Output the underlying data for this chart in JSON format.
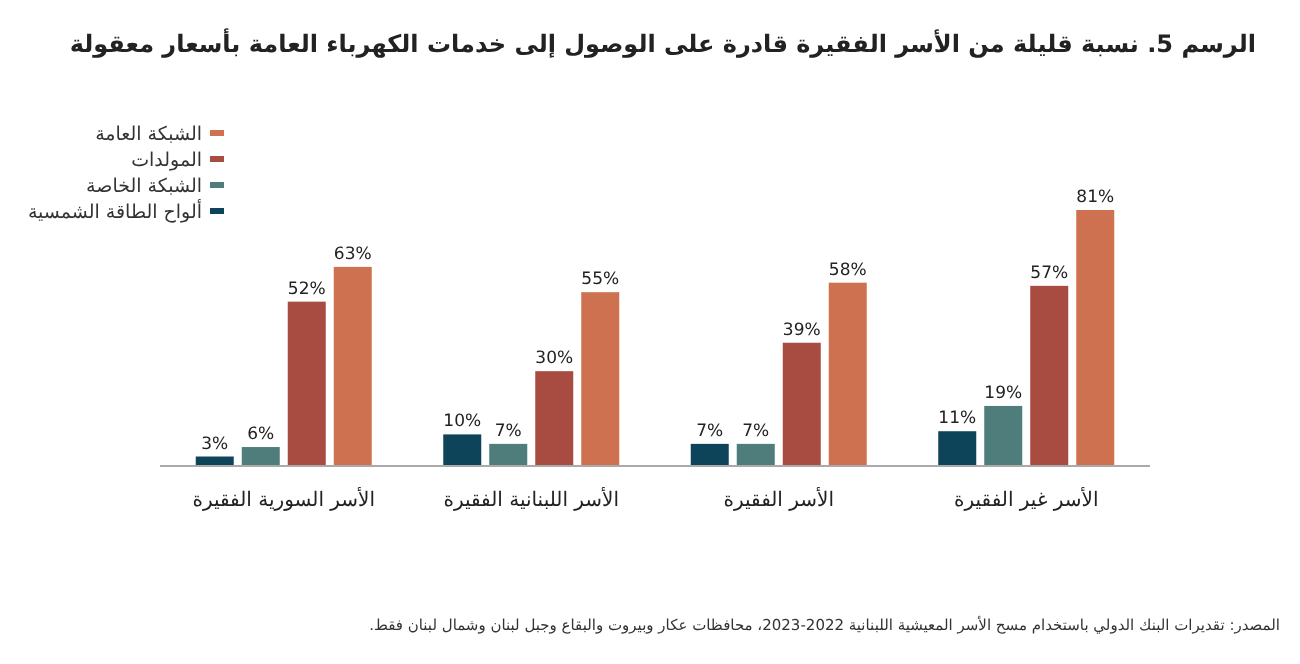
{
  "chart_data": {
    "type": "bar",
    "title": "الرسم 5. نسبة قليلة من الأسر الفقيرة قادرة على الوصول إلى خدمات الكهرباء العامة بأسعار معقولة",
    "categories": [
      "الأسر السورية الفقيرة",
      "الأسر اللبنانية الفقيرة",
      "الأسر الفقيرة",
      "الأسر غير الفقيرة"
    ],
    "series": [
      {
        "name": "ألواح الطاقة الشمسية",
        "color": "#0e4459",
        "values": [
          3,
          10,
          7,
          11
        ],
        "value_labels": [
          "3%",
          "10%",
          "7%",
          "11%"
        ]
      },
      {
        "name": "الشبكة الخاصة",
        "color": "#4f7d7c",
        "values": [
          6,
          7,
          7,
          19
        ],
        "value_labels": [
          "6%",
          "7%",
          "7%",
          "19%"
        ]
      },
      {
        "name": "المولدات",
        "color": "#a84b40",
        "values": [
          52,
          30,
          39,
          57
        ],
        "value_labels": [
          "52%",
          "30%",
          "39%",
          "57%"
        ]
      },
      {
        "name": "الشبكة العامة",
        "color": "#cd7150",
        "values": [
          63,
          55,
          58,
          81
        ],
        "value_labels": [
          "63%",
          "55%",
          "58%",
          "81%"
        ]
      }
    ],
    "legend": "top left",
    "annotations": [
      "المصدر: تقديرات البنك الدولي باستخدام مسح الأسر المعيشية اللبنانية 2022-2023، محافظات عكار وبيروت والبقاع وجبل لبنان وشمال لبنان فقط."
    ]
  }
}
